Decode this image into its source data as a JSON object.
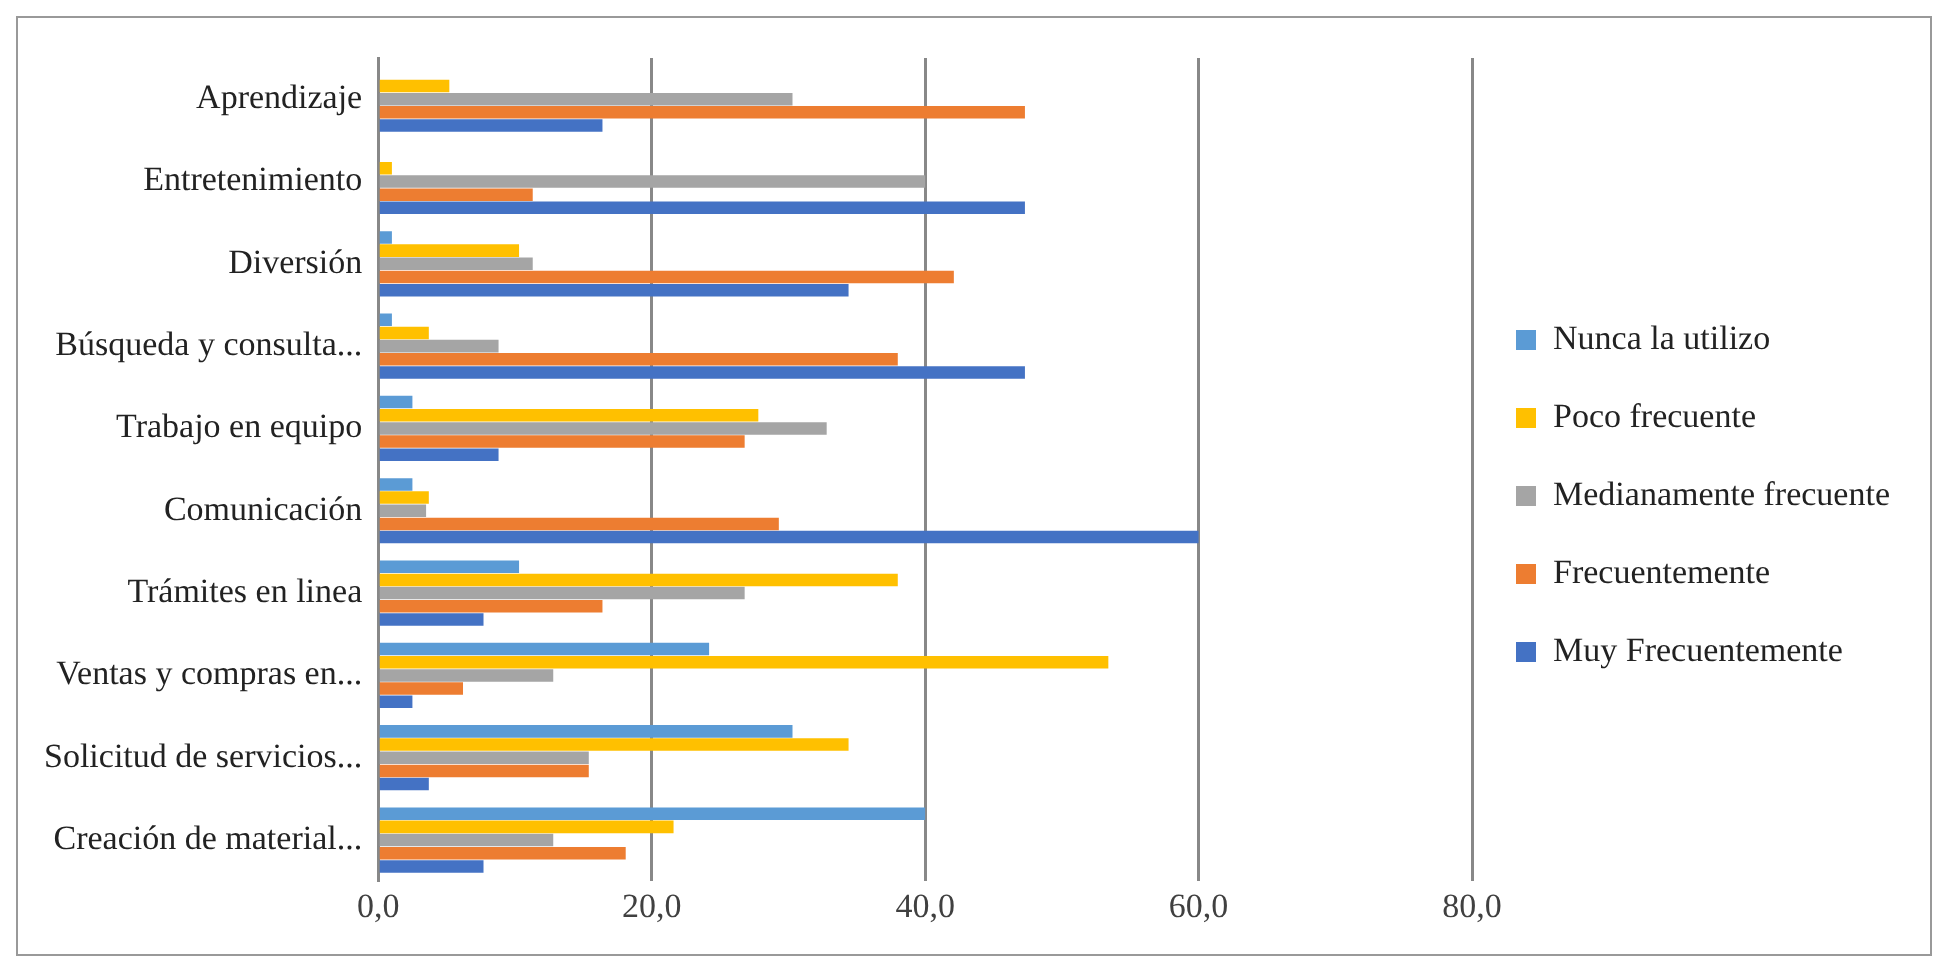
{
  "chart_data": {
    "type": "bar",
    "orientation": "horizontal",
    "categories": [
      "Aprendizaje",
      "Entretenimiento",
      "Diversión",
      "Búsqueda y consulta...",
      "Trabajo en equipo",
      "Comunicación",
      "Trámites en linea",
      "Ventas y compras en...",
      "Solicitud de servicios...",
      "Creación de material..."
    ],
    "series": [
      {
        "name": "Nunca la utilizo",
        "color": "#5b9bd5",
        "values": [
          0,
          0,
          1,
          1,
          2.5,
          2.5,
          10.3,
          24.2,
          30.3,
          40
        ]
      },
      {
        "name": "Poco frecuente",
        "color": "#ffc000",
        "values": [
          5.2,
          1,
          10.3,
          3.7,
          27.8,
          3.7,
          38,
          53.4,
          34.4,
          21.6
        ]
      },
      {
        "name": "Medianamente frecuente",
        "color": "#a5a5a5",
        "values": [
          30.3,
          40,
          11.3,
          8.8,
          32.8,
          3.5,
          26.8,
          12.8,
          15.4,
          12.8
        ]
      },
      {
        "name": "Frecuentemente",
        "color": "#ed7d31",
        "values": [
          47.3,
          11.3,
          42.1,
          38,
          26.8,
          29.3,
          16.4,
          6.2,
          15.4,
          18.1
        ]
      },
      {
        "name": "Muy Frecuentemente",
        "color": "#4472c4",
        "values": [
          16.4,
          47.3,
          34.4,
          47.3,
          8.8,
          60,
          7.7,
          2.5,
          3.7,
          7.7
        ]
      }
    ],
    "xlim": [
      0,
      80
    ],
    "xticks": [
      {
        "value": 0,
        "label": "0,0"
      },
      {
        "value": 20,
        "label": "20,0"
      },
      {
        "value": 40,
        "label": "40,0"
      },
      {
        "value": 60,
        "label": "60,0"
      },
      {
        "value": 80,
        "label": "80,0"
      }
    ],
    "grid": "x",
    "legend": "right"
  }
}
